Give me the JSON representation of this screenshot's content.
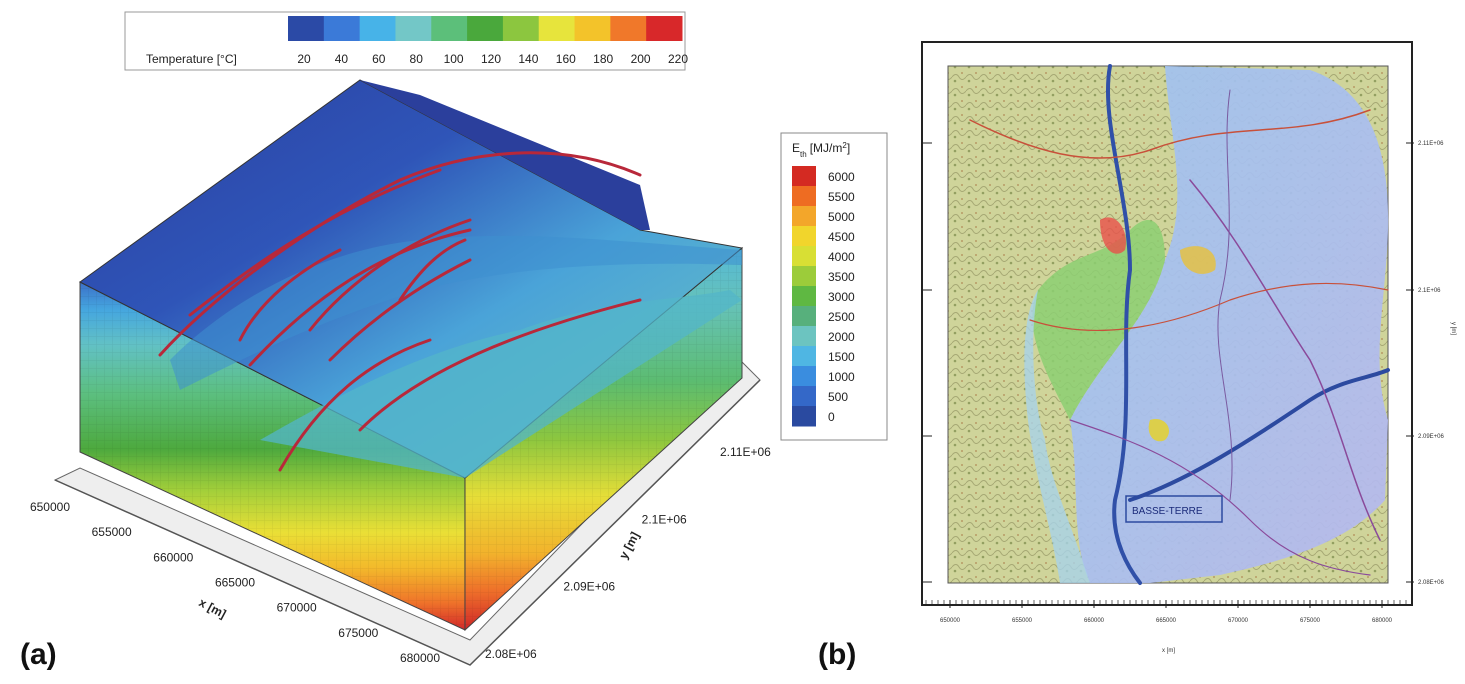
{
  "panels": {
    "a": {
      "letter": "(a)"
    },
    "b": {
      "letter": "(b)"
    }
  },
  "chart_data": [
    {
      "type": "other",
      "description_kind": "3D block model",
      "colorbar": {
        "label": "Temperature [°C]",
        "ticks": [
          "20",
          "40",
          "60",
          "80",
          "100",
          "120",
          "140",
          "160",
          "180",
          "200",
          "220"
        ],
        "colors": [
          "#2b4aa6",
          "#3b7ad8",
          "#47b3e8",
          "#73c7c7",
          "#5cbf7a",
          "#4aa83c",
          "#8cc63f",
          "#e7e43c",
          "#f3c32a",
          "#f0782a",
          "#d8282a"
        ]
      },
      "x_axis": {
        "label": "x [m]",
        "ticks": [
          "650000",
          "655000",
          "660000",
          "665000",
          "670000",
          "675000",
          "680000"
        ]
      },
      "y_axis": {
        "label": "y [m]",
        "ticks": [
          "2.08E+06",
          "2.09E+06",
          "2.1E+06",
          "2.11E+06"
        ]
      }
    },
    {
      "type": "heatmap",
      "description_kind": "map overlay",
      "colorbar": {
        "label_main": "E",
        "label_sub": "th",
        "label_unit": "[MJ/m",
        "label_sup": "2",
        "label_end": "]",
        "ticks": [
          "6000",
          "5500",
          "5000",
          "4500",
          "4000",
          "3500",
          "3000",
          "2500",
          "2000",
          "1500",
          "1000",
          "500",
          "0"
        ],
        "colors": [
          "#d42a22",
          "#ee6c22",
          "#f3a62a",
          "#f1d52c",
          "#d8df34",
          "#9ccc3a",
          "#5fb842",
          "#57b07c",
          "#6cc4c0",
          "#4fb6e3",
          "#3a8ddf",
          "#3468c8",
          "#2a4aa0"
        ]
      },
      "x_axis": {
        "label": "x [m]",
        "ticks": [
          "650000",
          "655000",
          "660000",
          "665000",
          "670000",
          "675000",
          "680000"
        ]
      },
      "y_axis": {
        "label": "y [m]",
        "ticks": [
          "2.11E+06",
          "2.1E+06",
          "2.09E+06",
          "2.08E+06"
        ]
      },
      "map_label": "BASSE-TERRE"
    }
  ]
}
